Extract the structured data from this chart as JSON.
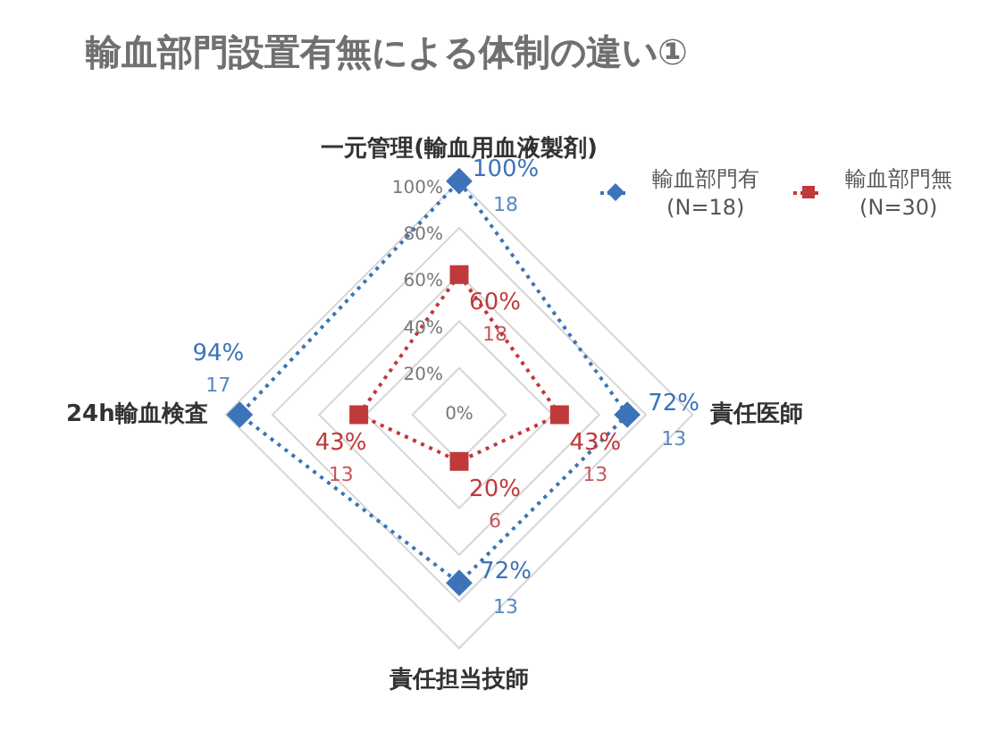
{
  "chart_data": {
    "type": "radar",
    "title": "輸血部門設置有無による体制の違い①",
    "categories": [
      "一元管理(輸血用血液製剤)",
      "責任医師",
      "責任担当技師",
      "24h輸血検査"
    ],
    "series": [
      {
        "name": "輸血部門有 (N=18)",
        "color": "#3d73b8",
        "marker": "diamond",
        "values": [
          100,
          72,
          72,
          94
        ],
        "value_labels": [
          "100%\n18",
          "72%\n13",
          "72%\n13",
          "94%\n17"
        ]
      },
      {
        "name": "輸血部門無 (N=30)",
        "color": "#c0393b",
        "marker": "square",
        "values": [
          60,
          43,
          20,
          43
        ],
        "value_labels": [
          "60%\n18",
          "43%\n13",
          "20%\n6",
          "43%\n13"
        ]
      }
    ],
    "ylim": [
      0,
      100
    ],
    "yticks": [
      {
        "value": 0,
        "label": "0%"
      },
      {
        "value": 20,
        "label": "20%"
      },
      {
        "value": 40,
        "label": "40%"
      },
      {
        "value": 60,
        "label": "60%"
      },
      {
        "value": 80,
        "label": "80%"
      },
      {
        "value": 100,
        "label": "100%"
      }
    ],
    "grid": true,
    "legend": "top right",
    "line_style": "dotted"
  }
}
